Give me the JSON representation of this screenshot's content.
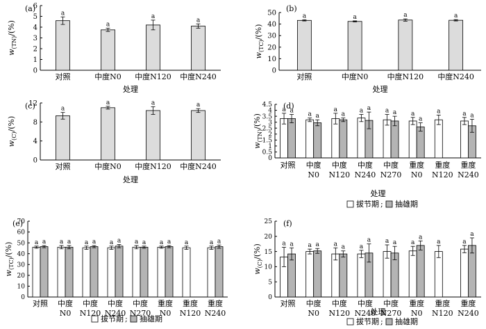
{
  "chart_data": [
    {
      "id": "a",
      "panel_label": "(a)",
      "type": "bar",
      "ylabel_main": "w",
      "ylabel_sub": "(TN)",
      "ylabel_unit": "/(%)",
      "xlabel": "处理",
      "ylim": [
        0,
        6
      ],
      "yticks": [
        0,
        1,
        2,
        3,
        4,
        5,
        6
      ],
      "categories": [
        [
          "对照"
        ],
        [
          "中度N0"
        ],
        [
          "中度N120"
        ],
        [
          "中度N240"
        ]
      ],
      "series": [
        {
          "fill": "#dcdcdc",
          "values": [
            4.6,
            3.75,
            4.2,
            4.1
          ],
          "errors": [
            0.35,
            0.15,
            0.45,
            0.2
          ],
          "sig": [
            "a",
            "a",
            "a",
            "a"
          ]
        }
      ]
    },
    {
      "id": "b",
      "panel_label": "(b)",
      "type": "bar",
      "ylabel_main": "w",
      "ylabel_sub": "(TC)",
      "ylabel_unit": "/(%)",
      "xlabel": "处理",
      "ylim": [
        0,
        50
      ],
      "yticks": [
        0,
        10,
        20,
        30,
        40,
        50
      ],
      "categories": [
        [
          "对照"
        ],
        [
          "中度N0"
        ],
        [
          "中度N120"
        ],
        [
          "中度N240"
        ]
      ],
      "series": [
        {
          "fill": "#dcdcdc",
          "values": [
            43.2,
            42.3,
            43.5,
            43.3
          ],
          "errors": [
            0.5,
            0.5,
            1.0,
            0.6
          ],
          "sig": [
            "a",
            "a",
            "a",
            "a"
          ]
        }
      ]
    },
    {
      "id": "c",
      "panel_label": "(c)",
      "type": "bar",
      "ylabel_main": "w",
      "ylabel_sub": "(C)",
      "ylabel_unit": "/(%)",
      "xlabel": "处理",
      "ylim": [
        0,
        12
      ],
      "yticks": [
        0,
        4,
        8,
        12
      ],
      "categories": [
        [
          "对照"
        ],
        [
          "中度N0"
        ],
        [
          "中度N120"
        ],
        [
          "中度N240"
        ]
      ],
      "series": [
        {
          "fill": "#dcdcdc",
          "values": [
            9.3,
            11.0,
            10.4,
            10.4
          ],
          "errors": [
            0.7,
            0.3,
            0.8,
            0.4
          ],
          "sig": [
            "a",
            "a",
            "a",
            "a"
          ]
        }
      ]
    },
    {
      "id": "d",
      "panel_label": "(d)",
      "type": "bar",
      "ylabel_main": "w",
      "ylabel_sub": "(TN)",
      "ylabel_unit": "/(%)",
      "xlabel": "处理",
      "ylim": [
        0,
        4.5
      ],
      "yticks": [
        0,
        0.5,
        1,
        1.5,
        2,
        2.5,
        3,
        3.5,
        4,
        4.5
      ],
      "categories": [
        [
          "对照"
        ],
        [
          "中度",
          "N0"
        ],
        [
          "中度",
          "N120"
        ],
        [
          "中度",
          "N240"
        ],
        [
          "中度",
          "N270"
        ],
        [
          "重度",
          "N0"
        ],
        [
          "重度",
          "N120"
        ],
        [
          "重度",
          "N240"
        ]
      ],
      "legend": [
        "拔节期",
        "抽雄期"
      ],
      "legend_sep": ";",
      "series": [
        {
          "name": "拔节期",
          "fill": "#ffffff",
          "values": [
            3.3,
            3.2,
            3.3,
            3.35,
            3.2,
            3.1,
            3.2,
            3.1
          ],
          "errors": [
            0.45,
            0.15,
            0.45,
            0.3,
            0.45,
            0.3,
            0.4,
            0.3
          ],
          "sig": [
            "a",
            "a",
            "a",
            "a",
            "a",
            "a",
            "a",
            "a"
          ]
        },
        {
          "name": "抽雄期",
          "fill": "#b4b4b4",
          "values": [
            3.3,
            2.95,
            3.2,
            3.15,
            3.1,
            2.6,
            null,
            2.7
          ],
          "errors": [
            0.35,
            0.25,
            0.15,
            0.7,
            0.4,
            0.35,
            null,
            0.55
          ],
          "sig": [
            "a",
            "a",
            "a",
            "a",
            "a",
            "a",
            null,
            "a"
          ]
        }
      ]
    },
    {
      "id": "e",
      "panel_label": "(e)",
      "type": "bar",
      "ylabel_main": "w",
      "ylabel_sub": "(TC)",
      "ylabel_unit": "/(%)",
      "xlabel": "",
      "ylim": [
        0,
        70
      ],
      "yticks": [
        0,
        10,
        20,
        30,
        40,
        50,
        60,
        70
      ],
      "categories": [
        [
          "对照"
        ],
        [
          "中度",
          "N0"
        ],
        [
          "中度",
          "N120"
        ],
        [
          "中度",
          "N240"
        ],
        [
          "中度",
          "N270"
        ],
        [
          "重度",
          "N0"
        ],
        [
          "重度",
          "N120"
        ],
        [
          "重度",
          "N240"
        ]
      ],
      "legend": [
        "拔节期",
        "抽雄期"
      ],
      "legend_sep": ";",
      "series": [
        {
          "name": "拔节期",
          "fill": "#ffffff",
          "values": [
            46,
            46,
            45.5,
            45.5,
            46,
            46,
            45.5,
            45.5
          ],
          "errors": [
            1,
            1.5,
            1.5,
            1.5,
            1.5,
            1,
            1.5,
            1.5
          ],
          "sig": [
            "a",
            "a",
            "a",
            "a",
            "a",
            "a",
            "a",
            "a"
          ]
        },
        {
          "name": "抽雄期",
          "fill": "#b4b4b4",
          "values": [
            46.5,
            46,
            46.5,
            47,
            46,
            46.5,
            null,
            46.5
          ],
          "errors": [
            1,
            1.5,
            1,
            1.5,
            1,
            1,
            null,
            1.5
          ],
          "sig": [
            "a",
            "a",
            "a",
            "a",
            "a",
            "a",
            null,
            "a"
          ]
        }
      ]
    },
    {
      "id": "f",
      "panel_label": "(f)",
      "type": "bar",
      "ylabel_main": "w",
      "ylabel_sub": "(C)",
      "ylabel_unit": "/(%)",
      "xlabel": "处理",
      "ylim": [
        0,
        25
      ],
      "yticks": [
        0,
        5,
        10,
        15,
        20,
        25
      ],
      "categories": [
        [
          "对照"
        ],
        [
          "中度",
          "N0"
        ],
        [
          "中度",
          "N120"
        ],
        [
          "中度",
          "N240"
        ],
        [
          "中度",
          "N270"
        ],
        [
          "重度",
          "N0"
        ],
        [
          "重度",
          "N120"
        ],
        [
          "重度",
          "N240"
        ]
      ],
      "legend": [
        "拔节期",
        "抽雄期"
      ],
      "legend_sep": ";",
      "series": [
        {
          "name": "拔节期",
          "fill": "#ffffff",
          "values": [
            13.2,
            15.0,
            14.2,
            14.2,
            15.0,
            15.2,
            15.0,
            15.8
          ],
          "errors": [
            3.2,
            0.8,
            2.0,
            1.2,
            2.2,
            1.5,
            2.0,
            1.2
          ],
          "sig": [
            "a",
            "a",
            "a",
            "a",
            "a",
            "a",
            "a",
            "a"
          ]
        },
        {
          "name": "抽雄期",
          "fill": "#b4b4b4",
          "values": [
            14.2,
            15.2,
            14.2,
            14.5,
            14.5,
            17.0,
            null,
            17.0
          ],
          "errors": [
            2.0,
            0.8,
            1.0,
            3.0,
            2.2,
            1.5,
            null,
            2.5
          ],
          "sig": [
            "a",
            "a",
            "a",
            "a",
            "a",
            "a",
            null,
            "a"
          ]
        }
      ]
    }
  ]
}
